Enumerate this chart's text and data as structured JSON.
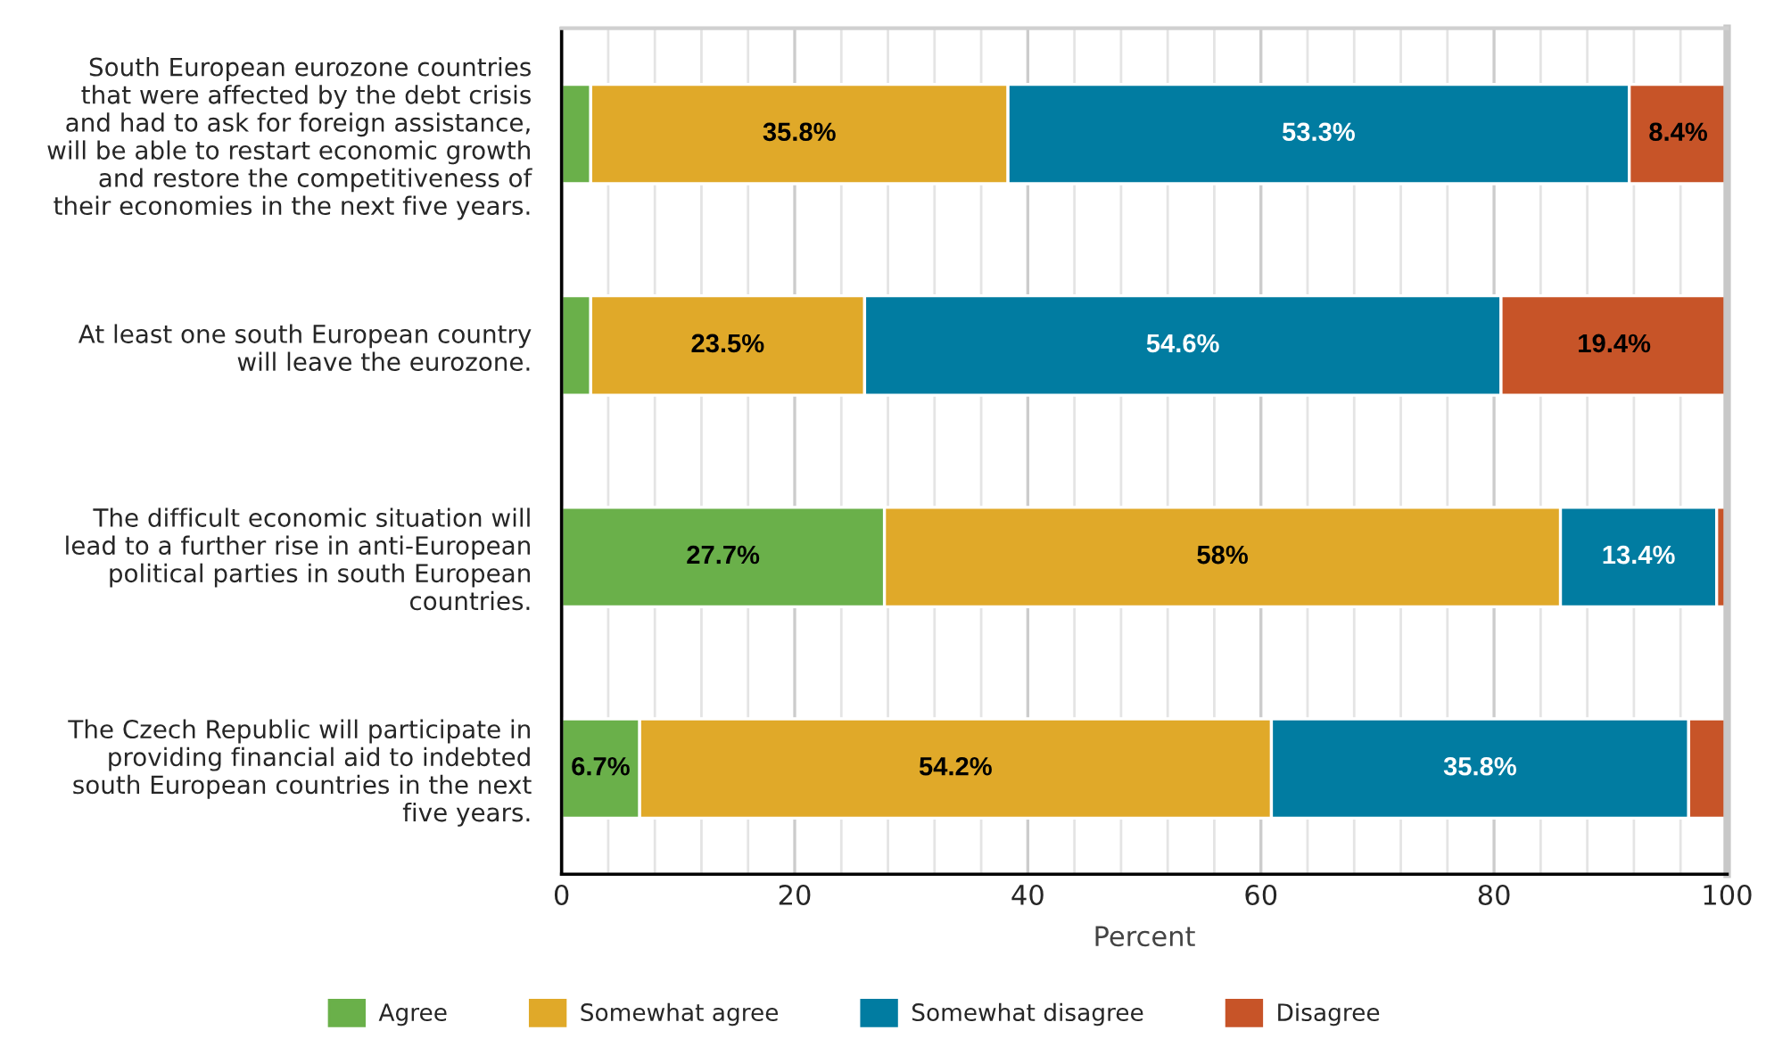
{
  "chart_data": {
    "type": "bar",
    "orientation": "horizontal",
    "stacked": true,
    "categories": [
      "South European eurozone countries\nthat were affected by the debt crisis\nand had to ask for foreign assistance,\nwill be able to restart economic growth\nand restore the competitiveness of\ntheir economies in the next five years.",
      "At least one south European country\nwill leave the eurozone.",
      "The difficult economic situation will\nlead to a further rise in anti-European\npolitical parties in south European\ncountries.",
      "The Czech Republic will participate in\nproviding financial aid to indebted\nsouth European countries in the next\nfive years."
    ],
    "series": [
      {
        "name": "Agree",
        "color": "#6ab04a",
        "values": [
          2.5,
          2.5,
          27.7,
          6.7
        ],
        "value_labels": [
          null,
          null,
          "27.7%",
          "6.7%"
        ]
      },
      {
        "name": "Somewhat agree",
        "color": "#e0a929",
        "values": [
          35.8,
          23.5,
          58,
          54.2
        ],
        "value_labels": [
          "35.8%",
          "23.5%",
          "58%",
          "54.2%"
        ]
      },
      {
        "name": "Somewhat disagree",
        "color": "#017ca1",
        "values": [
          53.3,
          54.6,
          13.4,
          35.8
        ],
        "value_labels": [
          "53.3%",
          "54.6%",
          "13.4%",
          "35.8%"
        ]
      },
      {
        "name": "Disagree",
        "color": "#c75428",
        "values": [
          8.4,
          19.4,
          0.9,
          3.3
        ],
        "value_labels": [
          "8.4%",
          "19.4%",
          null,
          null
        ]
      }
    ],
    "xlabel": "Percent",
    "xlim": [
      0,
      100
    ],
    "xticks": [
      0,
      20,
      40,
      60,
      80,
      100
    ],
    "grid": "x",
    "legend": "bottom"
  }
}
